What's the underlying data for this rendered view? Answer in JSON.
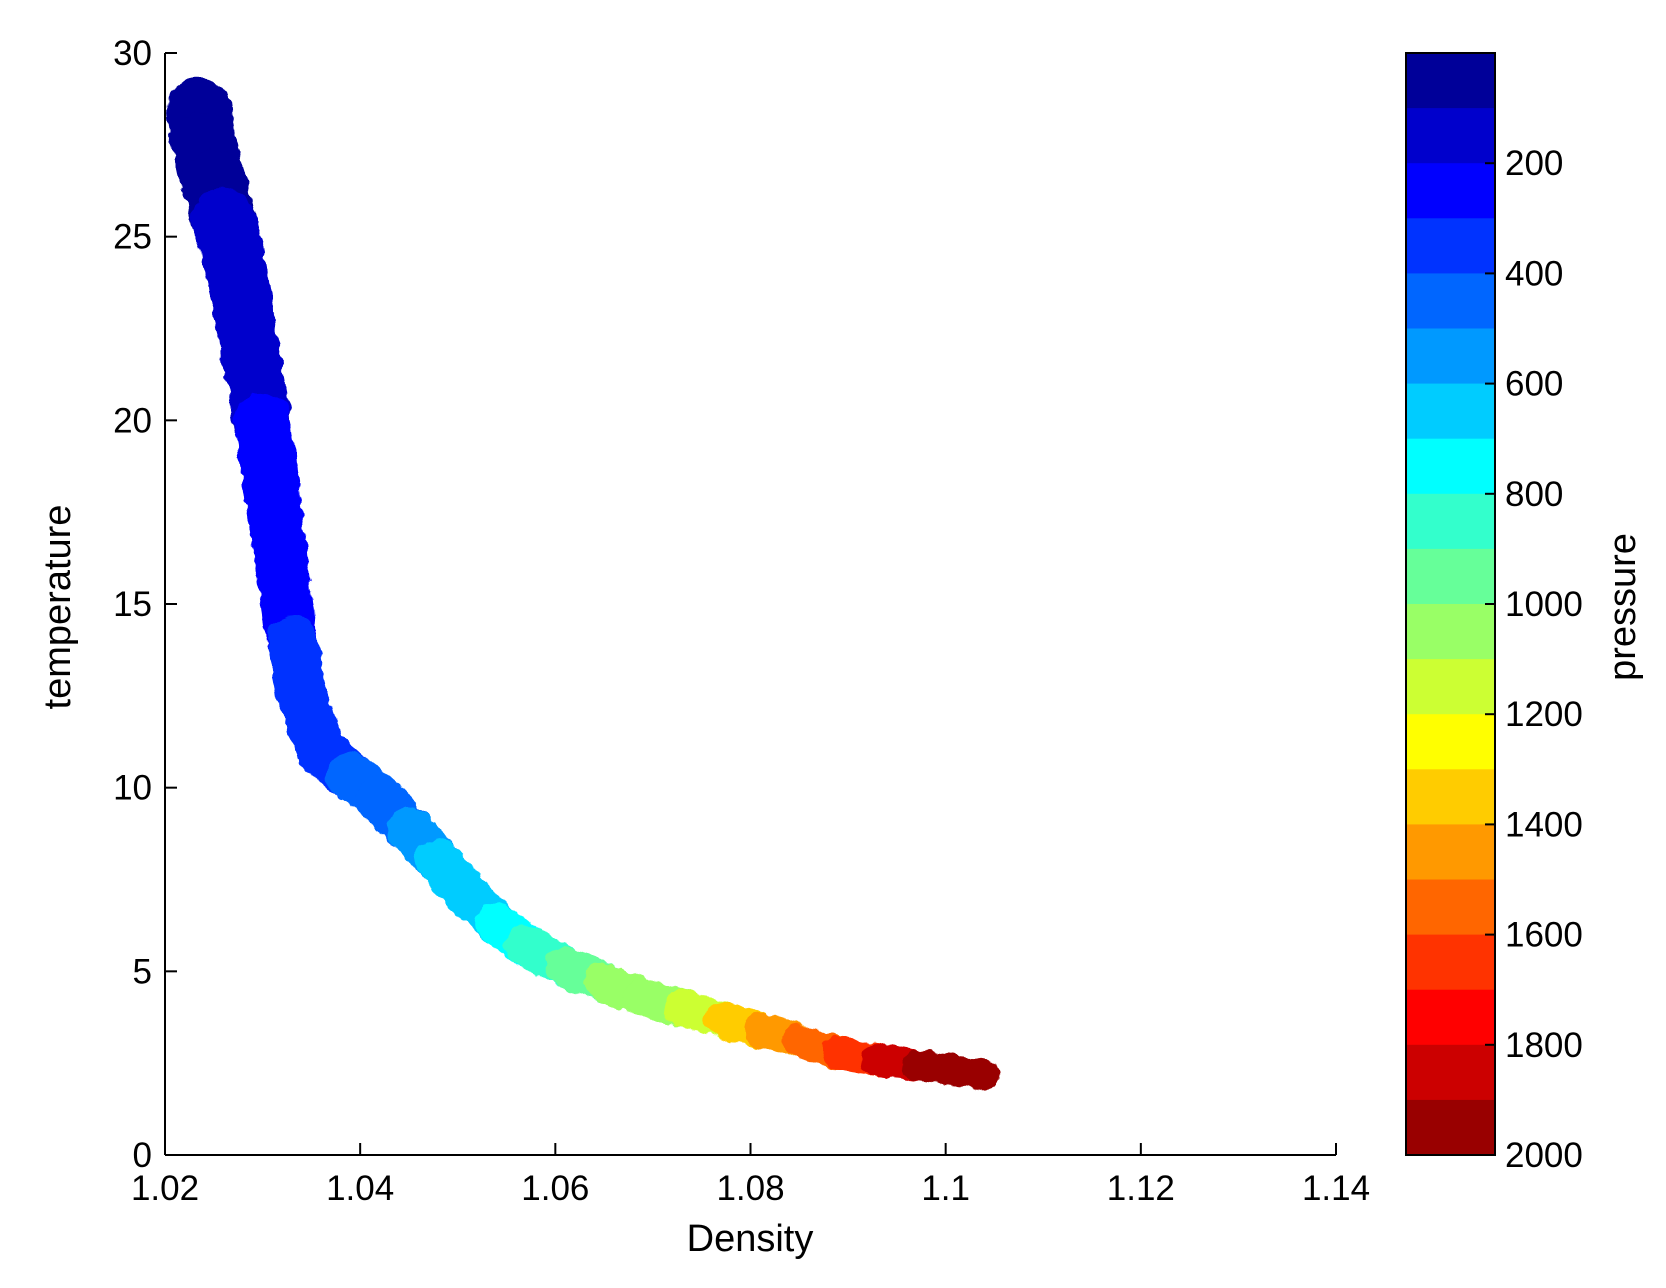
{
  "chart_data": {
    "type": "scatter",
    "title": "",
    "xlabel": "Density",
    "ylabel": "temperature",
    "xlim": [
      1.02,
      1.14
    ],
    "ylim": [
      0,
      30
    ],
    "xticks": [
      1.02,
      1.04,
      1.06,
      1.08,
      1.1,
      1.12,
      1.14
    ],
    "xtick_labels": [
      "1.02",
      "1.04",
      "1.06",
      "1.08",
      "1.1",
      "1.12",
      "1.14"
    ],
    "yticks": [
      0,
      5,
      10,
      15,
      20,
      25,
      30
    ],
    "ytick_labels": [
      "0",
      "5",
      "10",
      "15",
      "20",
      "25",
      "30"
    ],
    "grid": false,
    "legend": "none",
    "colorbar": {
      "label": "pressure",
      "range": [
        0,
        2000
      ],
      "ticks": [
        200,
        400,
        600,
        800,
        1000,
        1200,
        1400,
        1600,
        1800,
        2000
      ],
      "tick_labels": [
        "200",
        "400",
        "600",
        "800",
        "1000",
        "1200",
        "1400",
        "1600",
        "1800",
        "2000"
      ],
      "colormap": "jet",
      "levels": 20,
      "direction": "low-at-top"
    },
    "points": [
      {
        "x": 1.0235,
        "y": 28.4,
        "pressure": 20
      },
      {
        "x": 1.024,
        "y": 27.5,
        "pressure": 40
      },
      {
        "x": 1.025,
        "y": 26.5,
        "pressure": 60
      },
      {
        "x": 1.026,
        "y": 25.5,
        "pressure": 80
      },
      {
        "x": 1.027,
        "y": 24.5,
        "pressure": 100
      },
      {
        "x": 1.028,
        "y": 23.0,
        "pressure": 130
      },
      {
        "x": 1.029,
        "y": 21.5,
        "pressure": 160
      },
      {
        "x": 1.03,
        "y": 20.0,
        "pressure": 190
      },
      {
        "x": 1.031,
        "y": 18.0,
        "pressure": 220
      },
      {
        "x": 1.032,
        "y": 16.0,
        "pressure": 250
      },
      {
        "x": 1.033,
        "y": 14.0,
        "pressure": 290
      },
      {
        "x": 1.034,
        "y": 12.5,
        "pressure": 320
      },
      {
        "x": 1.036,
        "y": 11.0,
        "pressure": 350
      },
      {
        "x": 1.039,
        "y": 10.3,
        "pressure": 380
      },
      {
        "x": 1.042,
        "y": 9.7,
        "pressure": 420
      },
      {
        "x": 1.045,
        "y": 8.9,
        "pressure": 470
      },
      {
        "x": 1.048,
        "y": 8.0,
        "pressure": 530
      },
      {
        "x": 1.051,
        "y": 7.1,
        "pressure": 600
      },
      {
        "x": 1.054,
        "y": 6.3,
        "pressure": 680
      },
      {
        "x": 1.057,
        "y": 5.7,
        "pressure": 760
      },
      {
        "x": 1.061,
        "y": 5.1,
        "pressure": 840
      },
      {
        "x": 1.065,
        "y": 4.7,
        "pressure": 920
      },
      {
        "x": 1.069,
        "y": 4.3,
        "pressure": 1000
      },
      {
        "x": 1.073,
        "y": 4.0,
        "pressure": 1080
      },
      {
        "x": 1.077,
        "y": 3.7,
        "pressure": 1180
      },
      {
        "x": 1.081,
        "y": 3.4,
        "pressure": 1300
      },
      {
        "x": 1.085,
        "y": 3.1,
        "pressure": 1420
      },
      {
        "x": 1.089,
        "y": 2.8,
        "pressure": 1550
      },
      {
        "x": 1.093,
        "y": 2.6,
        "pressure": 1680
      },
      {
        "x": 1.097,
        "y": 2.45,
        "pressure": 1800
      },
      {
        "x": 1.101,
        "y": 2.3,
        "pressure": 1900
      },
      {
        "x": 1.104,
        "y": 2.2,
        "pressure": 1980
      }
    ]
  }
}
